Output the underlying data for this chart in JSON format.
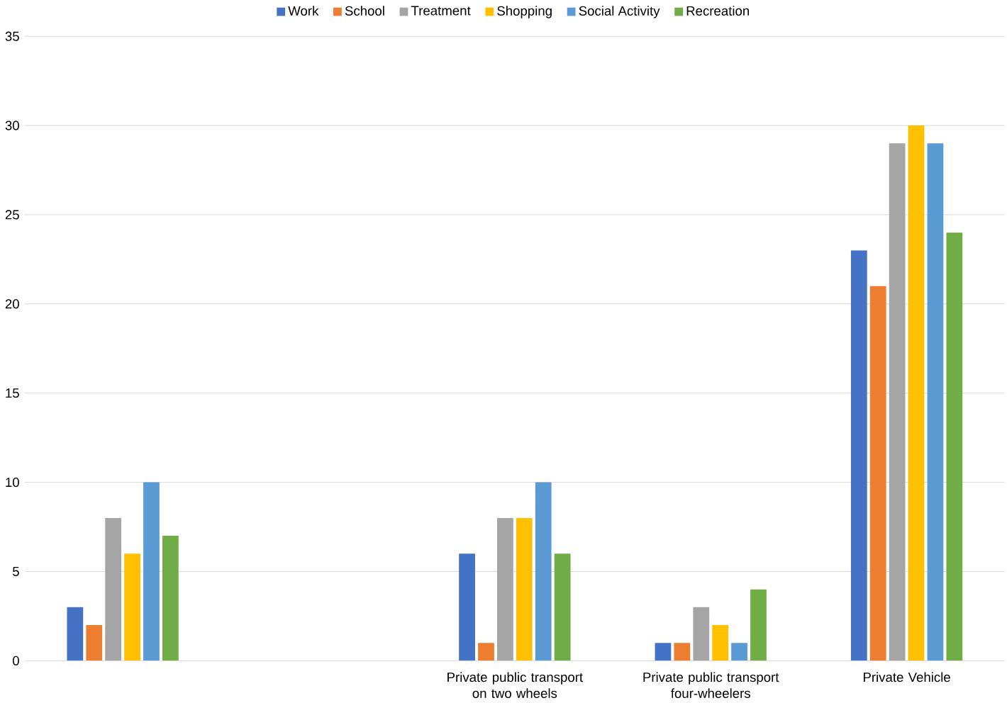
{
  "chart_data": {
    "type": "bar",
    "categories": [
      null,
      null,
      "Private public transport on two wheels",
      "Private public transport four-wheelers",
      "Private Vehicle"
    ],
    "series": [
      {
        "name": "Work",
        "color": "#4472c4",
        "values": [
          3,
          0,
          6,
          1,
          23
        ]
      },
      {
        "name": "School",
        "color": "#ed7d31",
        "values": [
          2,
          0,
          1,
          1,
          21
        ]
      },
      {
        "name": "Treatment",
        "color": "#a5a5a5",
        "values": [
          8,
          0,
          8,
          3,
          29
        ]
      },
      {
        "name": "Shopping",
        "color": "#ffc000",
        "values": [
          6,
          0,
          8,
          2,
          30
        ]
      },
      {
        "name": "Social Activity",
        "color": "#5b9bd5",
        "values": [
          10,
          0,
          10,
          1,
          29
        ]
      },
      {
        "name": "Recreation",
        "color": "#70ad47",
        "values": [
          7,
          0,
          6,
          4,
          24
        ]
      }
    ],
    "ylim": [
      0,
      35
    ],
    "yticks": [
      0,
      5,
      10,
      15,
      20,
      25,
      30,
      35
    ],
    "grid": "y",
    "legend": "top"
  }
}
